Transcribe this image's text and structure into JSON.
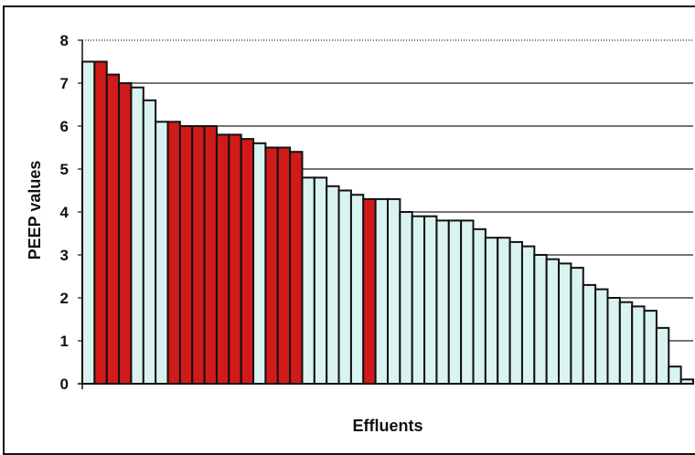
{
  "chart_data": {
    "type": "bar",
    "title": "",
    "xlabel": "Effluents",
    "ylabel": "PEEP values",
    "ylim": [
      0,
      8
    ],
    "yticks": [
      0,
      1,
      2,
      3,
      4,
      5,
      6,
      7,
      8
    ],
    "grid": true,
    "legend": "none",
    "colors": {
      "red": "#d11a1a",
      "light": "#d9f3f1",
      "edge": "#111111",
      "grid": "#222222"
    },
    "bars": [
      {
        "value": 7.5,
        "color": "light"
      },
      {
        "value": 7.5,
        "color": "red"
      },
      {
        "value": 7.2,
        "color": "red"
      },
      {
        "value": 7.0,
        "color": "red"
      },
      {
        "value": 6.9,
        "color": "light"
      },
      {
        "value": 6.6,
        "color": "light"
      },
      {
        "value": 6.1,
        "color": "light"
      },
      {
        "value": 6.1,
        "color": "red"
      },
      {
        "value": 6.0,
        "color": "red"
      },
      {
        "value": 6.0,
        "color": "red"
      },
      {
        "value": 6.0,
        "color": "red"
      },
      {
        "value": 5.8,
        "color": "red"
      },
      {
        "value": 5.8,
        "color": "red"
      },
      {
        "value": 5.7,
        "color": "red"
      },
      {
        "value": 5.6,
        "color": "light"
      },
      {
        "value": 5.5,
        "color": "red"
      },
      {
        "value": 5.5,
        "color": "red"
      },
      {
        "value": 5.4,
        "color": "red"
      },
      {
        "value": 4.8,
        "color": "light"
      },
      {
        "value": 4.8,
        "color": "light"
      },
      {
        "value": 4.6,
        "color": "light"
      },
      {
        "value": 4.5,
        "color": "light"
      },
      {
        "value": 4.4,
        "color": "light"
      },
      {
        "value": 4.3,
        "color": "red"
      },
      {
        "value": 4.3,
        "color": "light"
      },
      {
        "value": 4.3,
        "color": "light"
      },
      {
        "value": 4.0,
        "color": "light"
      },
      {
        "value": 3.9,
        "color": "light"
      },
      {
        "value": 3.9,
        "color": "light"
      },
      {
        "value": 3.8,
        "color": "light"
      },
      {
        "value": 3.8,
        "color": "light"
      },
      {
        "value": 3.8,
        "color": "light"
      },
      {
        "value": 3.6,
        "color": "light"
      },
      {
        "value": 3.4,
        "color": "light"
      },
      {
        "value": 3.4,
        "color": "light"
      },
      {
        "value": 3.3,
        "color": "light"
      },
      {
        "value": 3.2,
        "color": "light"
      },
      {
        "value": 3.0,
        "color": "light"
      },
      {
        "value": 2.9,
        "color": "light"
      },
      {
        "value": 2.8,
        "color": "light"
      },
      {
        "value": 2.7,
        "color": "light"
      },
      {
        "value": 2.3,
        "color": "light"
      },
      {
        "value": 2.2,
        "color": "light"
      },
      {
        "value": 2.0,
        "color": "light"
      },
      {
        "value": 1.9,
        "color": "light"
      },
      {
        "value": 1.8,
        "color": "light"
      },
      {
        "value": 1.7,
        "color": "light"
      },
      {
        "value": 1.3,
        "color": "light"
      },
      {
        "value": 0.4,
        "color": "light"
      },
      {
        "value": 0.1,
        "color": "light"
      }
    ]
  }
}
